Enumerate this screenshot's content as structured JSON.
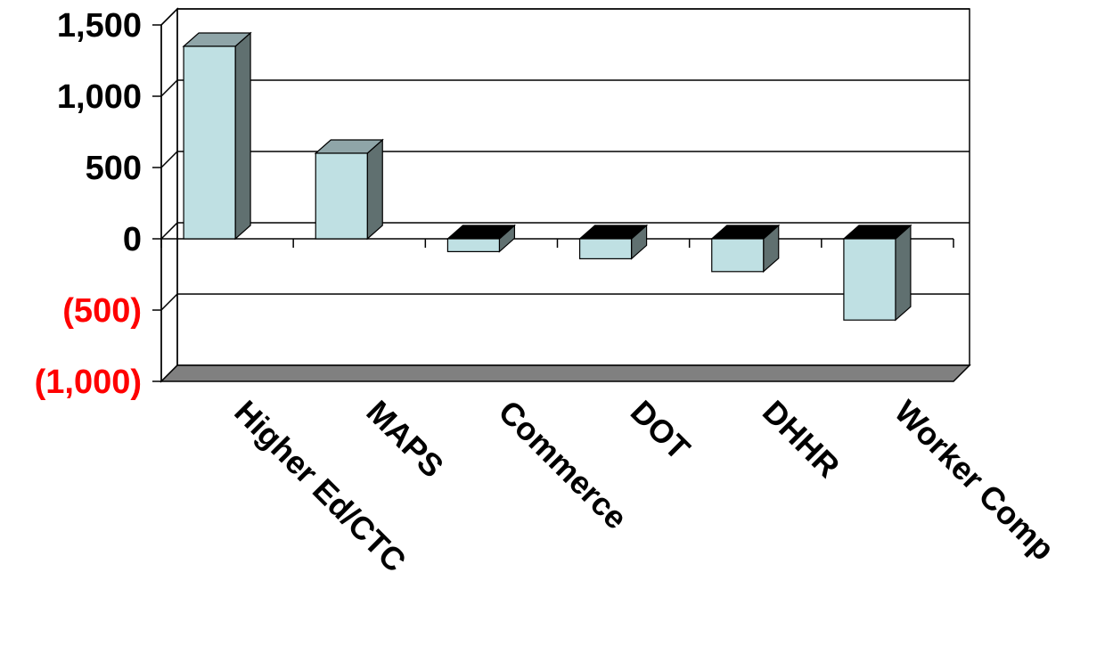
{
  "chart_data": {
    "type": "bar",
    "style": "3d-column",
    "categories": [
      "Higher Ed/CTC",
      "MAPS",
      "Commerce",
      "DOT",
      "DHHR",
      "Worker Comp"
    ],
    "values": [
      1350,
      600,
      -90,
      -140,
      -230,
      -570
    ],
    "ylim": [
      -1000,
      1500
    ],
    "ytick_values": [
      1500,
      1000,
      500,
      0,
      -500,
      -1000
    ],
    "ytick_labels": [
      "1,500",
      "1,000",
      "500",
      "0",
      "(500)",
      "(1,000)"
    ],
    "title": "",
    "xlabel": "",
    "ylabel": "",
    "grid": true,
    "legend": "none",
    "colors": {
      "bar_front": "#BFE0E3",
      "bar_side": "#607070",
      "bar_top": "#8FA5A8",
      "bar_top_negative": "#000000",
      "floor": "#808080",
      "grid": "#000000",
      "positive_tick": "#000000",
      "negative_tick": "#FF0000"
    }
  }
}
